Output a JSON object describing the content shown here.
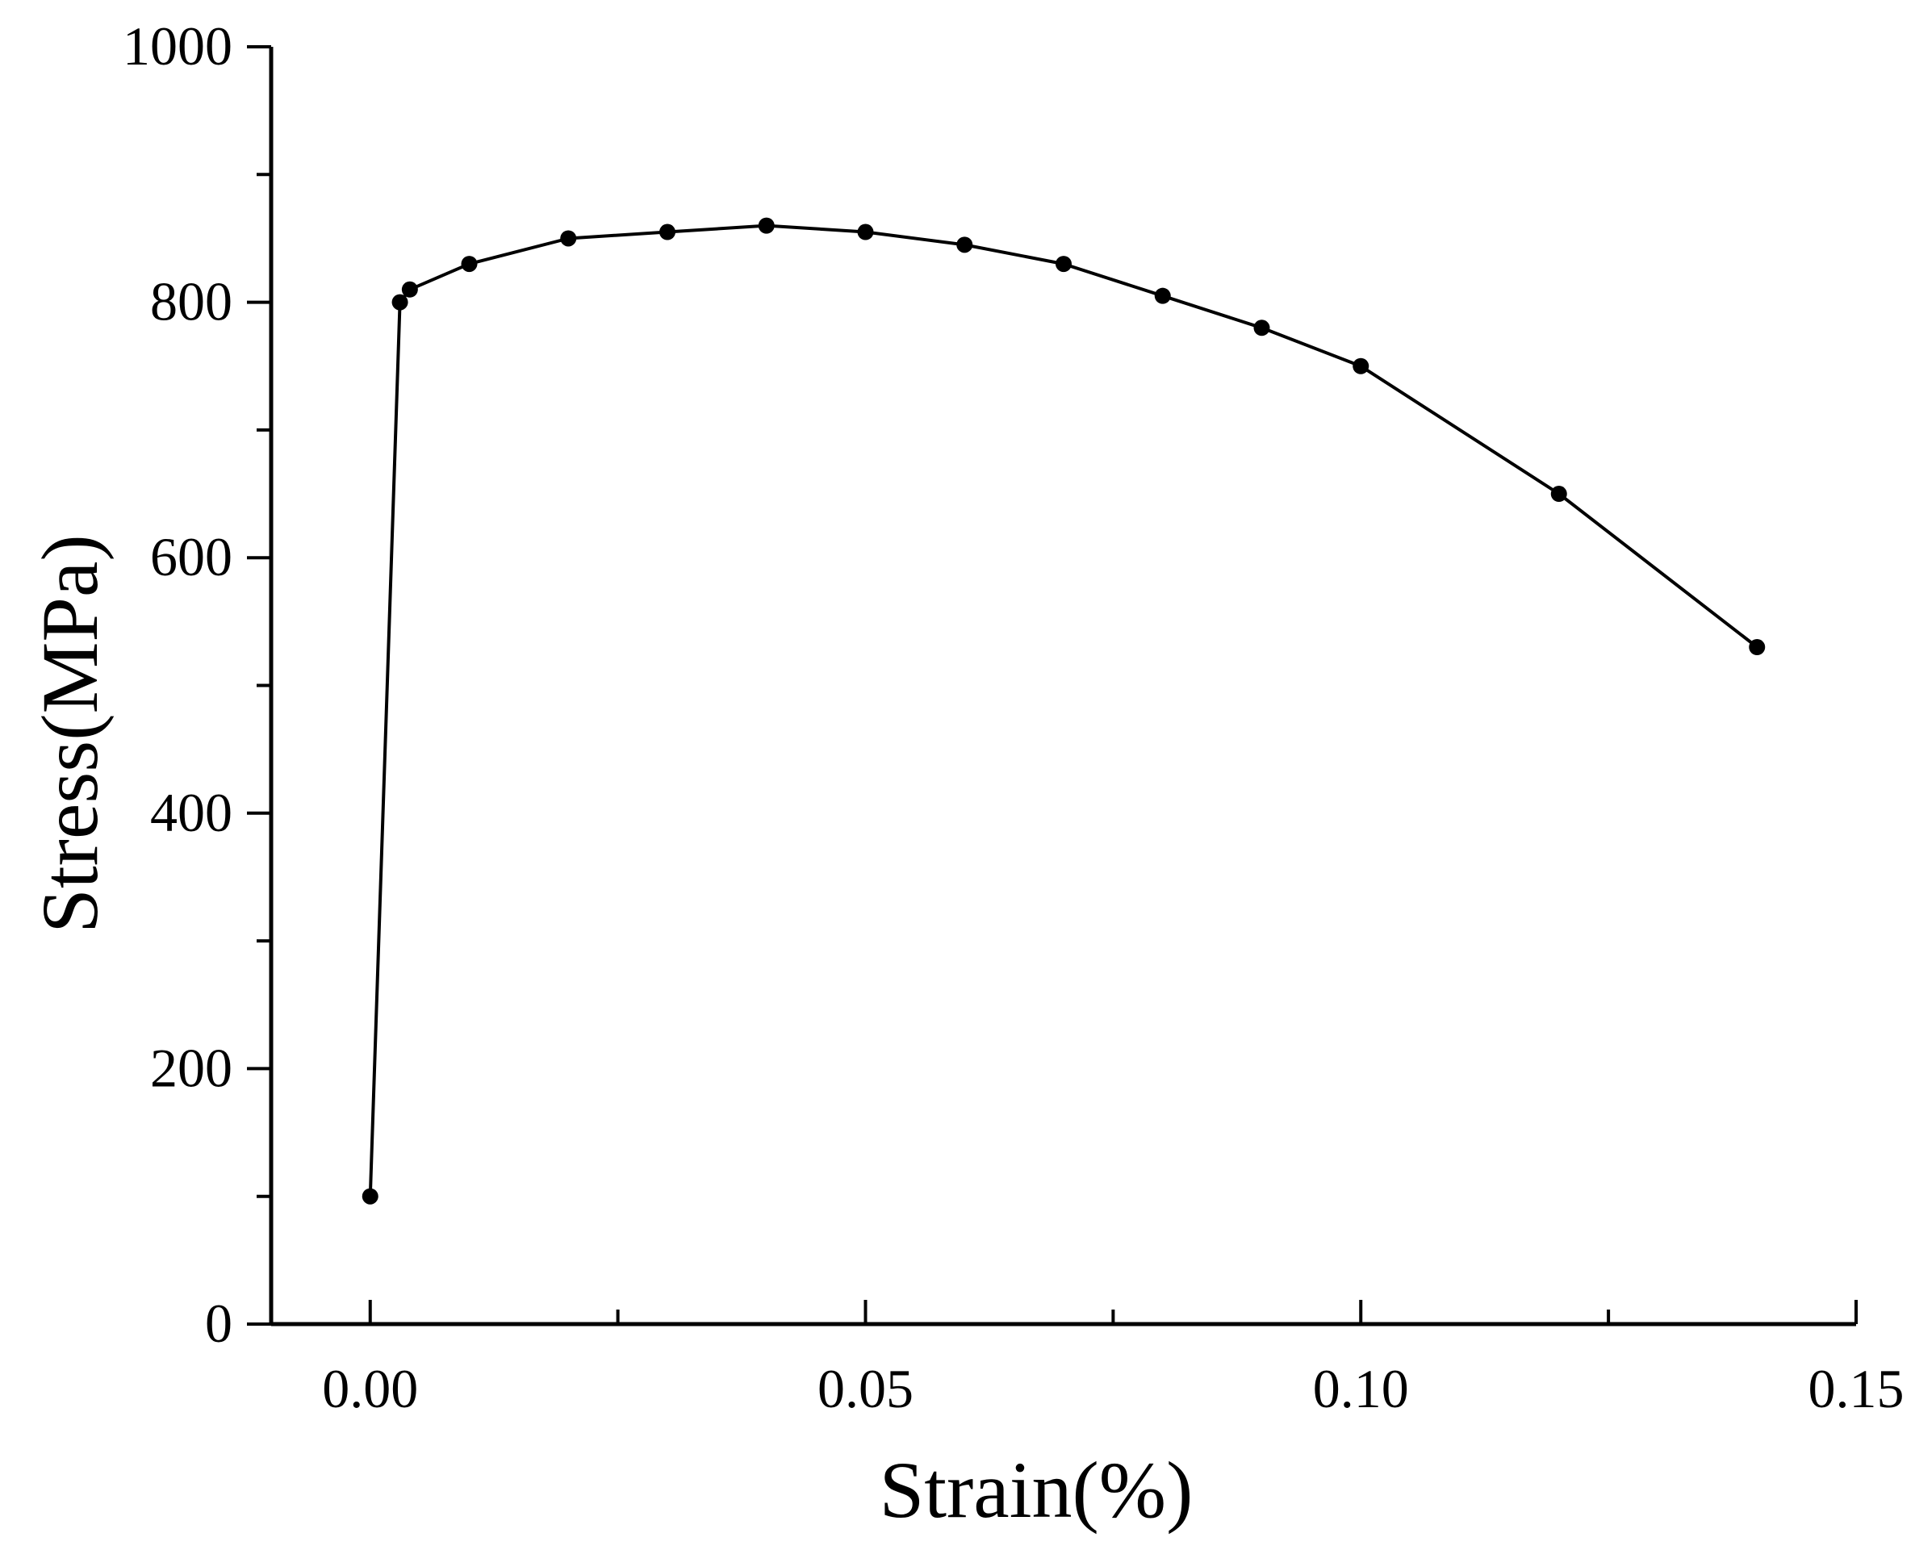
{
  "chart_data": {
    "type": "line",
    "title": "",
    "xlabel": "Strain(%)",
    "ylabel": "Stress(MPa)",
    "xlim": [
      -0.01,
      0.15
    ],
    "ylim": [
      0,
      1000
    ],
    "x_ticks": [
      0.0,
      0.05,
      0.1,
      0.15
    ],
    "x_tick_labels": [
      "0.00",
      "0.05",
      "0.10",
      "0.15"
    ],
    "x_minor_ticks": [
      0.025,
      0.075,
      0.125
    ],
    "y_ticks": [
      0,
      200,
      400,
      600,
      800,
      1000
    ],
    "y_tick_labels": [
      "0",
      "200",
      "400",
      "600",
      "800",
      "1000"
    ],
    "y_minor_ticks": [
      100,
      300,
      500,
      700,
      900
    ],
    "grid": false,
    "legend": "none",
    "series": [
      {
        "color": "#000000",
        "marker": "circle",
        "x": [
          0.0,
          0.003,
          0.004,
          0.01,
          0.02,
          0.03,
          0.04,
          0.05,
          0.06,
          0.07,
          0.08,
          0.09,
          0.1,
          0.12,
          0.14
        ],
        "y": [
          100,
          800,
          810,
          830,
          850,
          855,
          860,
          855,
          845,
          830,
          805,
          780,
          750,
          650,
          530
        ]
      }
    ]
  }
}
